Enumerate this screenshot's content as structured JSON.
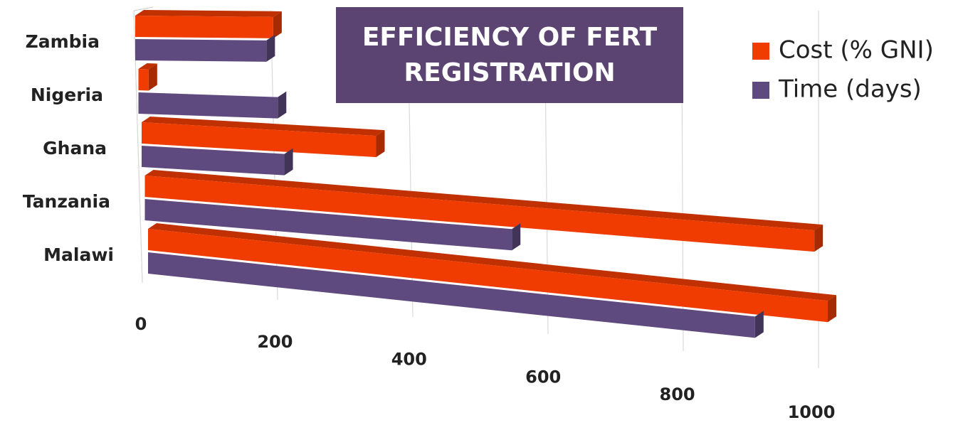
{
  "chart_data": {
    "type": "bar3d",
    "orientation": "horizontal",
    "title": "EFFICIENCY OF FERT REGISTRATION",
    "categories": [
      "Zambia",
      "Nigeria",
      "Ghana",
      "Tanzania",
      "Malawi"
    ],
    "series": [
      {
        "name": "Cost (% GNI)",
        "color": "#f03c00",
        "values": [
          203,
          15,
          345,
          985,
          1000
        ]
      },
      {
        "name": "Time (days)",
        "color": "#5e4a7e",
        "values": [
          193,
          205,
          210,
          540,
          893
        ]
      }
    ],
    "xlim": [
      0,
      1000
    ],
    "xticks": [
      0,
      200,
      400,
      600,
      800,
      1000
    ],
    "grid": true,
    "legend": "top-right"
  }
}
